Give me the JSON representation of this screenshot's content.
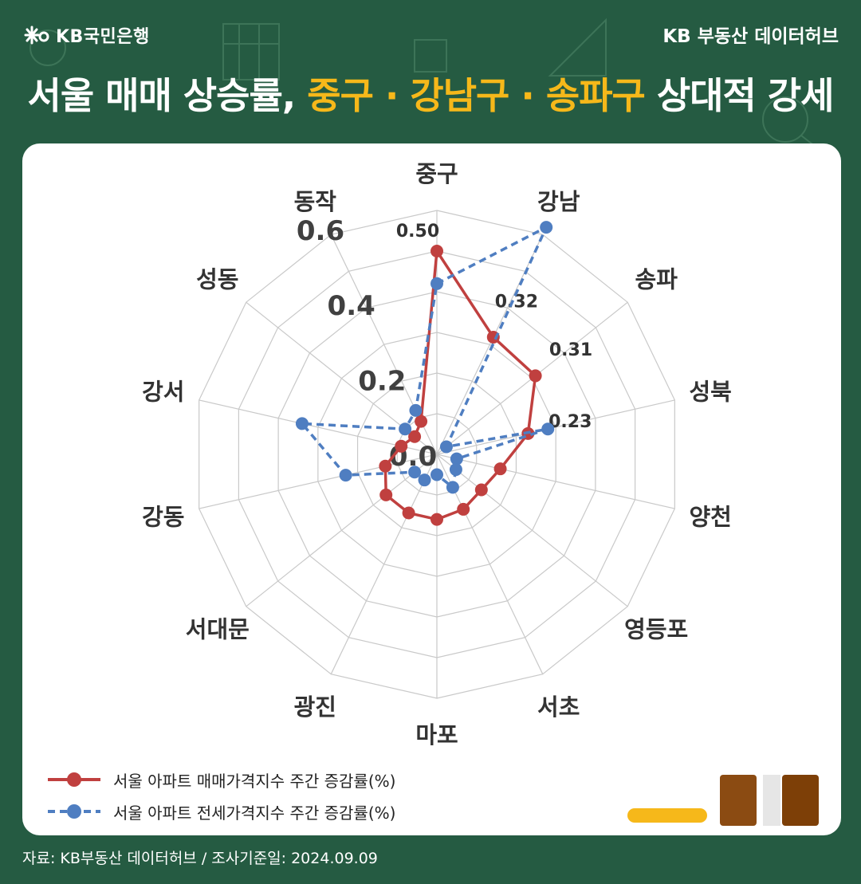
{
  "header": {
    "bank_name": "KB국민은행",
    "brand": "KB 부동산  데이터허브"
  },
  "headline": {
    "part1": "서울 매매 상승률, ",
    "highlight": "중구 · 강남구 · 송파구",
    "part2": " 상대적 강세"
  },
  "colors": {
    "background": "#255b42",
    "highlight": "#f6b81a",
    "sale_series": "#c0403f",
    "jeonse_series": "#4f7ec1"
  },
  "chart_data": {
    "type": "radar",
    "categories": [
      "중구",
      "강남",
      "송파",
      "성북",
      "양천",
      "영등포",
      "서초",
      "마포",
      "광진",
      "서대문",
      "강동",
      "강서",
      "성동",
      "동작"
    ],
    "rlim": [
      0,
      0.6
    ],
    "ticks": [
      "0.0",
      "0.2",
      "0.4",
      "0.6"
    ],
    "tick_values": [
      0,
      0.2,
      0.4,
      0.6
    ],
    "grid": true,
    "legend_position": "bottom-left",
    "series": [
      {
        "name": "서울 아파트 매매가격지수 주간 증감률(%)",
        "line_style": "solid",
        "values": [
          0.5,
          0.32,
          0.31,
          0.23,
          0.16,
          0.14,
          0.15,
          0.16,
          0.16,
          0.16,
          0.13,
          0.09,
          0.07,
          0.09
        ],
        "data_labels": [
          "0.50",
          "0.32",
          "0.31",
          "0.23",
          "",
          "",
          "",
          "",
          "",
          "",
          "",
          "",
          "",
          ""
        ]
      },
      {
        "name": "서울 아파트 전세가격지수 주간 증감률(%)",
        "line_style": "dashed",
        "values": [
          0.42,
          0.62,
          0.03,
          0.28,
          0.05,
          0.06,
          0.09,
          0.05,
          0.07,
          0.07,
          0.23,
          0.34,
          0.1,
          0.12
        ],
        "data_labels": [
          "",
          "",
          "",
          "",
          "",
          "",
          "",
          "",
          "",
          "",
          "",
          "",
          "",
          ""
        ]
      }
    ]
  },
  "source_note": "자료: KB부동산 데이터허브 / 조사기준일: 2024.09.09"
}
